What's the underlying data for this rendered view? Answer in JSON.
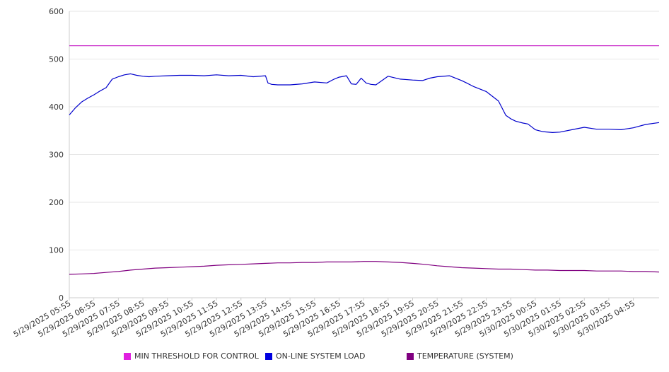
{
  "chart_data": {
    "type": "line",
    "ylim": [
      0,
      600
    ],
    "yticks": [
      0,
      100,
      200,
      300,
      400,
      500,
      600
    ],
    "grid": "horizontal",
    "legend_position": "bottom",
    "x_tick_labels": [
      "5/29/2025 05:55",
      "5/29/2025 06:55",
      "5/29/2025 07:55",
      "5/29/2025 08:55",
      "5/29/2025 09:55",
      "5/29/2025 10:55",
      "5/29/2025 11:55",
      "5/29/2025 12:55",
      "5/29/2025 13:55",
      "5/29/2025 14:55",
      "5/29/2025 15:55",
      "5/29/2025 16:55",
      "5/29/2025 17:55",
      "5/29/2025 18:55",
      "5/29/2025 19:55",
      "5/29/2025 20:55",
      "5/29/2025 21:55",
      "5/29/2025 22:55",
      "5/29/2025 23:55",
      "5/30/2025 00:55",
      "5/30/2025 01:55",
      "5/30/2025 02:55",
      "5/30/2025 03:55",
      "5/30/2025 04:55"
    ],
    "x_range_hours": [
      0,
      24.05
    ],
    "series": [
      {
        "name": "MIN THRESHOLD FOR CONTROL",
        "color": "#cc33cc",
        "x": [
          0,
          24.05
        ],
        "values": [
          528,
          528
        ]
      },
      {
        "name": "ON-LINE SYSTEM LOAD",
        "color": "#0000cc",
        "x": [
          0,
          0.25,
          0.5,
          0.75,
          1.0,
          1.25,
          1.5,
          1.75,
          2.0,
          2.25,
          2.5,
          2.75,
          3.0,
          3.25,
          3.5,
          4.0,
          4.5,
          5.0,
          5.5,
          6.0,
          6.5,
          7.0,
          7.5,
          8.0,
          8.1,
          8.25,
          8.5,
          9.0,
          9.5,
          10.0,
          10.5,
          10.8,
          11.0,
          11.3,
          11.5,
          11.7,
          11.9,
          12.1,
          12.3,
          12.5,
          13.0,
          13.5,
          14.0,
          14.4,
          14.7,
          15.0,
          15.5,
          16.0,
          16.2,
          16.5,
          17.0,
          17.5,
          17.8,
          18.0,
          18.2,
          18.5,
          18.7,
          18.9,
          19.0,
          19.3,
          19.7,
          20.0,
          20.5,
          21.0,
          21.5,
          22.0,
          22.5,
          23.0,
          23.5,
          24.05
        ],
        "values": [
          383,
          398,
          410,
          418,
          425,
          433,
          440,
          458,
          463,
          467,
          469,
          466,
          464,
          463,
          464,
          465,
          466,
          466,
          465,
          467,
          465,
          466,
          463,
          465,
          450,
          447,
          446,
          446,
          448,
          452,
          450,
          458,
          462,
          465,
          448,
          447,
          460,
          450,
          447,
          446,
          464,
          458,
          456,
          455,
          460,
          463,
          465,
          455,
          450,
          442,
          432,
          412,
          382,
          375,
          370,
          366,
          364,
          356,
          352,
          348,
          346,
          347,
          352,
          357,
          353,
          353,
          352,
          356,
          363,
          367
        ]
      },
      {
        "name": "TEMPERATURE (SYSTEM)",
        "color": "#800080",
        "x": [
          0,
          0.5,
          1.0,
          1.5,
          2.0,
          2.5,
          3.0,
          3.5,
          4.0,
          4.5,
          5.0,
          5.5,
          6.0,
          6.5,
          7.0,
          7.5,
          8.0,
          8.5,
          9.0,
          9.5,
          10.0,
          10.5,
          11.0,
          11.5,
          12.0,
          12.5,
          13.0,
          13.5,
          14.0,
          14.5,
          15.0,
          15.5,
          16.0,
          16.5,
          17.0,
          17.5,
          18.0,
          18.5,
          19.0,
          19.5,
          20.0,
          20.5,
          21.0,
          21.5,
          22.0,
          22.5,
          23.0,
          23.5,
          24.05
        ],
        "values": [
          49,
          50,
          51,
          53,
          55,
          58,
          60,
          62,
          63,
          64,
          65,
          66,
          68,
          69,
          70,
          71,
          72,
          73,
          73,
          74,
          74,
          75,
          75,
          75,
          76,
          76,
          75,
          74,
          72,
          70,
          67,
          65,
          63,
          62,
          61,
          60,
          60,
          59,
          58,
          58,
          57,
          57,
          57,
          56,
          56,
          56,
          55,
          55,
          54
        ]
      }
    ]
  }
}
